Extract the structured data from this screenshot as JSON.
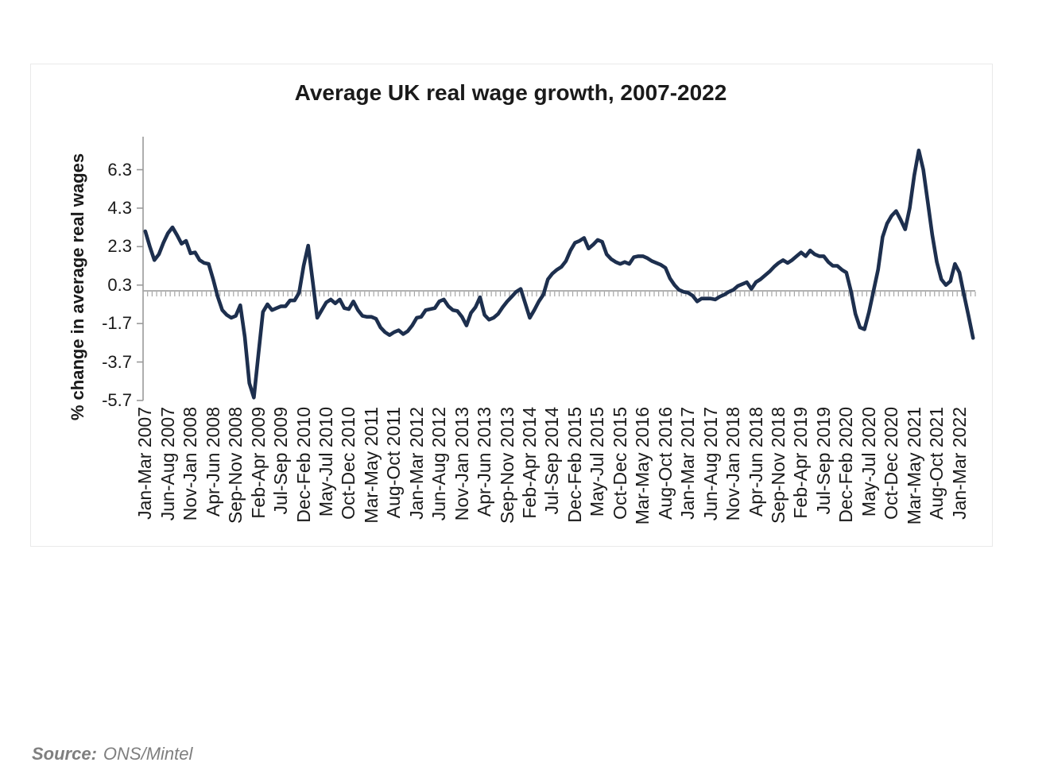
{
  "page": {
    "background": "#ffffff"
  },
  "header": {
    "title": "Average UK real wage growth, 2007-2022"
  },
  "source": {
    "label": "Source:",
    "value": "ONS/Mintel"
  },
  "colors": {
    "line": "#1d2f4e",
    "axis": "#999999",
    "minor_ticks": "#a6a6a6",
    "tick_text": "#1a1a1a",
    "frame_border": "#e9e9e9",
    "source_text": "#7f7f7f"
  },
  "chart_data": {
    "type": "line",
    "title": "Average UK real wage growth, 2007-2022",
    "xlabel": "",
    "ylabel": "% change in average real wages",
    "grid": false,
    "legend": "none",
    "baseline": 0,
    "ylim": [
      -5.7,
      8.1
    ],
    "y_ticks": [
      6.3,
      4.3,
      2.3,
      0.3,
      -1.7,
      -3.7,
      -5.7
    ],
    "x_tick_interval_points": 5,
    "x_tick_labels": [
      "Jan-Mar 2007",
      "Jun-Aug 2007",
      "Nov-Jan 2008",
      "Apr-Jun 2008",
      "Sep-Nov 2008",
      "Feb-Apr 2009",
      "Jul-Sep 2009",
      "Dec-Feb 2010",
      "May-Jul 2010",
      "Oct-Dec 2010",
      "Mar-May 2011",
      "Aug-Oct 2011",
      "Jan-Mar 2012",
      "Jun-Aug 2012",
      "Nov-Jan 2013",
      "Apr-Jun 2013",
      "Sep-Nov 2013",
      "Feb-Apr 2014",
      "Jul-Sep 2014",
      "Dec-Feb 2015",
      "May-Jul 2015",
      "Oct-Dec 2015",
      "Mar-May 2016",
      "Aug-Oct 2016",
      "Jan-Mar 2017",
      "Jun-Aug 2017",
      "Nov-Jan 2018",
      "Apr-Jun 2018",
      "Sep-Nov 2018",
      "Feb-Apr 2019",
      "Jul-Sep 2019",
      "Dec-Feb 2020",
      "May-Jul 2020",
      "Oct-Dec 2020",
      "Mar-May 2021",
      "Aug-Oct 2021",
      "Jan-Mar 2022"
    ],
    "series": [
      {
        "name": "% change in average real wages",
        "color": "#1d2f4e",
        "values": [
          3.1,
          2.3,
          1.6,
          1.9,
          2.5,
          3.0,
          3.3,
          2.9,
          2.45,
          2.6,
          1.95,
          2.0,
          1.6,
          1.45,
          1.4,
          0.6,
          -0.3,
          -1.0,
          -1.25,
          -1.4,
          -1.3,
          -0.75,
          -2.4,
          -4.8,
          -5.55,
          -3.3,
          -1.1,
          -0.7,
          -1.0,
          -0.9,
          -0.8,
          -0.8,
          -0.5,
          -0.5,
          -0.1,
          1.3,
          2.35,
          0.5,
          -1.4,
          -1.0,
          -0.6,
          -0.45,
          -0.65,
          -0.45,
          -0.9,
          -0.95,
          -0.55,
          -1.0,
          -1.3,
          -1.35,
          -1.35,
          -1.45,
          -1.9,
          -2.15,
          -2.3,
          -2.15,
          -2.05,
          -2.25,
          -2.1,
          -1.8,
          -1.4,
          -1.35,
          -1.0,
          -0.95,
          -0.9,
          -0.55,
          -0.45,
          -0.8,
          -1.0,
          -1.05,
          -1.35,
          -1.8,
          -1.15,
          -0.85,
          -0.33,
          -1.25,
          -1.5,
          -1.4,
          -1.2,
          -0.85,
          -0.55,
          -0.3,
          -0.05,
          0.1,
          -0.65,
          -1.4,
          -1.0,
          -0.55,
          -0.2,
          0.6,
          0.9,
          1.1,
          1.25,
          1.55,
          2.1,
          2.5,
          2.6,
          2.75,
          2.2,
          2.4,
          2.65,
          2.55,
          1.9,
          1.65,
          1.5,
          1.4,
          1.5,
          1.4,
          1.75,
          1.8,
          1.8,
          1.7,
          1.55,
          1.45,
          1.35,
          1.2,
          0.65,
          0.3,
          0.05,
          -0.05,
          -0.1,
          -0.25,
          -0.55,
          -0.4,
          -0.4,
          -0.4,
          -0.45,
          -0.3,
          -0.2,
          -0.05,
          0.05,
          0.25,
          0.35,
          0.45,
          0.1,
          0.45,
          0.6,
          0.8,
          1.0,
          1.25,
          1.45,
          1.6,
          1.45,
          1.6,
          1.8,
          2.0,
          1.8,
          2.1,
          1.9,
          1.8,
          1.8,
          1.5,
          1.3,
          1.3,
          1.1,
          0.95,
          0.0,
          -1.2,
          -1.9,
          -2.0,
          -1.1,
          0.0,
          1.1,
          2.8,
          3.5,
          3.9,
          4.15,
          3.7,
          3.2,
          4.3,
          6.0,
          7.3,
          6.3,
          4.6,
          2.9,
          1.5,
          0.6,
          0.3,
          0.5,
          1.4,
          0.95,
          -0.2,
          -1.3,
          -2.45
        ]
      }
    ]
  }
}
